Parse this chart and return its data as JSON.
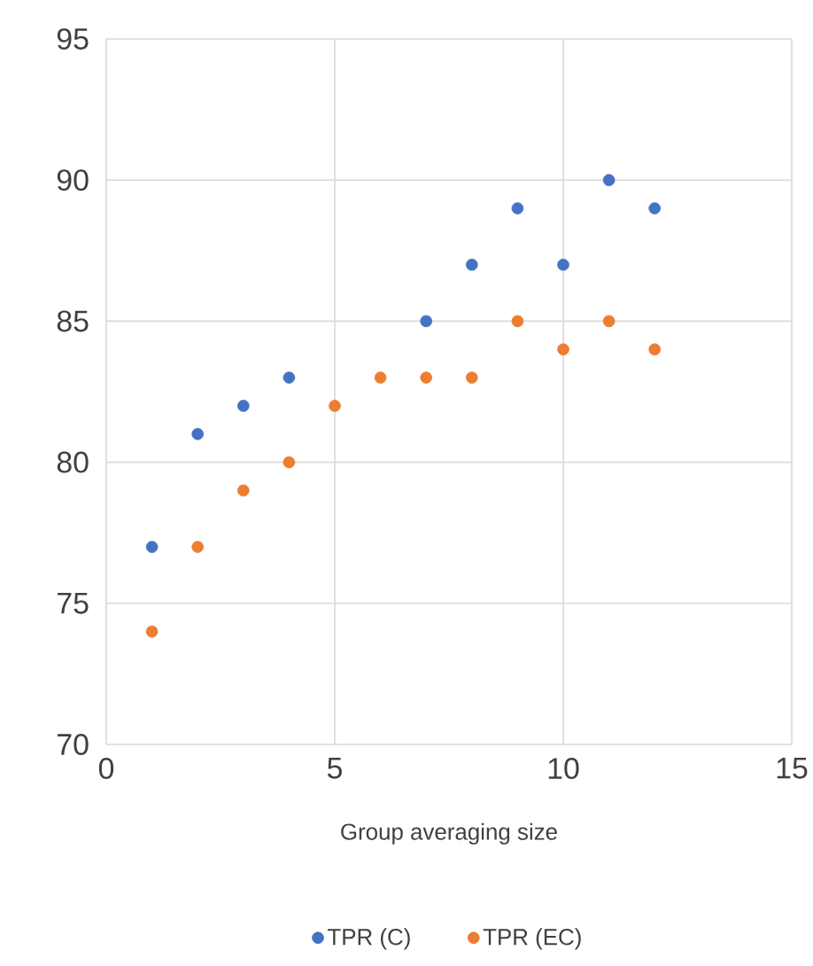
{
  "chart_data": {
    "type": "scatter",
    "xlabel": "Group averaging size",
    "x": [
      1,
      2,
      3,
      4,
      5,
      6,
      7,
      8,
      9,
      10,
      11,
      12
    ],
    "series": [
      {
        "name": "TPR (C)",
        "color": "#4472c4",
        "values": [
          77,
          81,
          82,
          83,
          null,
          null,
          85,
          87,
          89,
          87,
          90,
          89
        ]
      },
      {
        "name": "TPR (EC)",
        "color": "#ed7d31",
        "values": [
          74,
          77,
          79,
          80,
          82,
          83,
          83,
          83,
          85,
          84,
          85,
          84
        ]
      }
    ],
    "xlim": [
      0,
      15
    ],
    "xticks": [
      0,
      5,
      10,
      15
    ],
    "ylim": [
      70,
      95
    ],
    "yticks": [
      70,
      75,
      80,
      85,
      90,
      95
    ],
    "grid": true,
    "legend": "bottom",
    "marker": "circle"
  }
}
